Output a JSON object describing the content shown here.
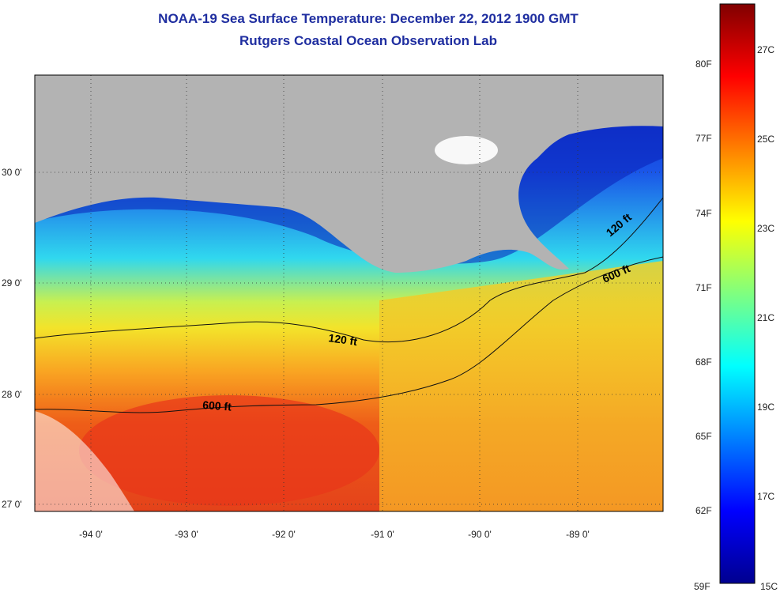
{
  "header": {
    "title": "NOAA-19 Sea Surface Temperature:  December 22, 2012 1900 GMT",
    "subtitle": "Rutgers Coastal Ocean Observation Lab"
  },
  "map": {
    "lat_labels": [
      "30 0'",
      "29 0'",
      "28 0'",
      "27 0'"
    ],
    "lon_labels": [
      "-94 0'",
      "-93 0'",
      "-92 0'",
      "-91 0'",
      "-90 0'",
      "-89 0'"
    ],
    "contour_labels": {
      "c120_west": "120 ft",
      "c600_west": "600 ft",
      "c120_east": "120 ft",
      "c600_east": "600 ft"
    },
    "colors": {
      "land": "#b3b3b3",
      "cold": "#000f8f",
      "warm": "#e83a10"
    }
  },
  "colorbar": {
    "fahrenheit": [
      "80F",
      "77F",
      "74F",
      "71F",
      "68F",
      "65F",
      "62F",
      "59F"
    ],
    "celsius": [
      "27C",
      "25C",
      "23C",
      "21C",
      "19C",
      "17C",
      "15C"
    ]
  }
}
